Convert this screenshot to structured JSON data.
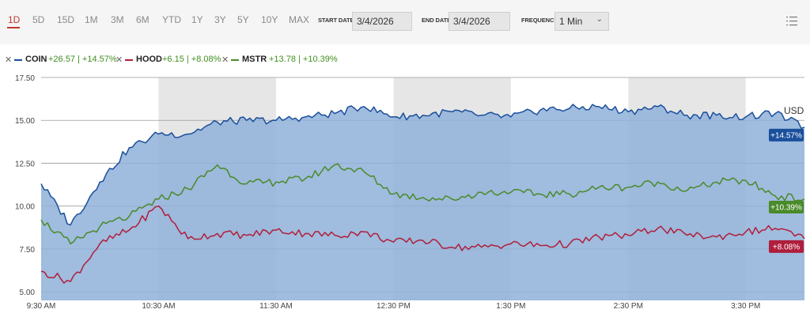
{
  "toolbar": {
    "ranges": [
      "1D",
      "5D",
      "15D",
      "1M",
      "3M",
      "6M",
      "YTD",
      "1Y",
      "3Y",
      "5Y",
      "10Y",
      "MAX"
    ],
    "active_range": "1D",
    "start_date_label": "START DATE",
    "start_date_value": "3/4/2026",
    "end_date_label": "END DATE",
    "end_date_value": "3/4/2026",
    "frequency_label": "FREQUENCY",
    "frequency_value": "1 Min",
    "chevron_icon": "chevron-down-icon",
    "menu_icon": "list-menu-icon"
  },
  "legend": {
    "items": [
      {
        "symbol": "COIN",
        "stat": "+26.57 | +14.57%",
        "color": "#1a4f9c",
        "remove_icon": "close-icon"
      },
      {
        "symbol": "HOOD",
        "stat": "+6.15 | +8.08%",
        "color": "#b01e3c",
        "remove_icon": "close-icon"
      },
      {
        "symbol": "MSTR",
        "stat": "+13.78 | +10.39%",
        "color": "#4a8a2a",
        "remove_icon": "close-icon"
      }
    ],
    "currency": "USD"
  },
  "colors": {
    "active_range": "#c0392b",
    "coin": "#1a4f9c",
    "coin_fill": "#8fb0d8",
    "hood": "#b01e3c",
    "mstr": "#4a8a2a",
    "shade": "#e6e6e6"
  },
  "chart_data": {
    "type": "line",
    "x": [
      "9:30 AM",
      "9:45 AM",
      "10:00 AM",
      "10:15 AM",
      "10:30 AM",
      "10:45 AM",
      "11:00 AM",
      "11:15 AM",
      "11:30 AM",
      "11:45 AM",
      "12:00 PM",
      "12:15 PM",
      "12:30 PM",
      "12:45 PM",
      "1:00 PM",
      "1:15 PM",
      "1:30 PM",
      "1:45 PM",
      "2:00 PM",
      "2:15 PM",
      "2:30 PM",
      "2:45 PM",
      "3:00 PM",
      "3:15 PM",
      "3:30 PM",
      "3:45 PM",
      "4:00 PM"
    ],
    "x_tick_labels": [
      "9:30 AM",
      "10:30 AM",
      "11:30 AM",
      "12:30 PM",
      "1:30 PM",
      "2:30 PM",
      "3:30 PM"
    ],
    "series": [
      {
        "name": "COIN",
        "color": "#1a4f9c",
        "fill": true,
        "values": [
          11.3,
          8.9,
          11.4,
          13.4,
          14.2,
          14.2,
          14.9,
          15.0,
          15.0,
          15.2,
          15.4,
          15.8,
          15.2,
          15.3,
          15.5,
          15.3,
          15.2,
          15.6,
          15.7,
          15.8,
          15.5,
          15.8,
          15.3,
          15.3,
          15.2,
          15.4,
          14.6
        ]
      },
      {
        "name": "HOOD",
        "color": "#b01e3c",
        "fill": false,
        "values": [
          6.2,
          5.6,
          7.8,
          8.6,
          10.0,
          8.1,
          8.4,
          8.3,
          8.6,
          8.4,
          8.3,
          8.5,
          7.9,
          8.0,
          7.6,
          7.6,
          7.8,
          7.7,
          7.8,
          8.2,
          8.3,
          8.7,
          8.3,
          8.2,
          8.5,
          8.7,
          8.1
        ]
      },
      {
        "name": "MSTR",
        "color": "#4a8a2a",
        "fill": false,
        "values": [
          9.2,
          7.8,
          8.8,
          9.4,
          10.4,
          11.0,
          12.4,
          11.3,
          11.4,
          11.6,
          12.4,
          12.0,
          10.7,
          10.5,
          10.4,
          10.8,
          10.8,
          10.7,
          10.7,
          11.1,
          11.1,
          11.4,
          10.9,
          11.4,
          11.5,
          10.6,
          10.4
        ]
      }
    ],
    "end_tags": [
      {
        "series": "COIN",
        "label": "+14.57%"
      },
      {
        "series": "MSTR",
        "label": "+10.39%"
      },
      {
        "series": "HOOD",
        "label": "+8.08%"
      }
    ],
    "y_ticks": [
      "17.50",
      "15.00",
      "12.50",
      "10.00",
      "7.50",
      "5.00"
    ],
    "ylim": [
      4.5,
      17.5
    ],
    "grid": true,
    "shaded_hours": [
      "10:30 AM",
      "12:30 PM",
      "2:30 PM"
    ]
  }
}
